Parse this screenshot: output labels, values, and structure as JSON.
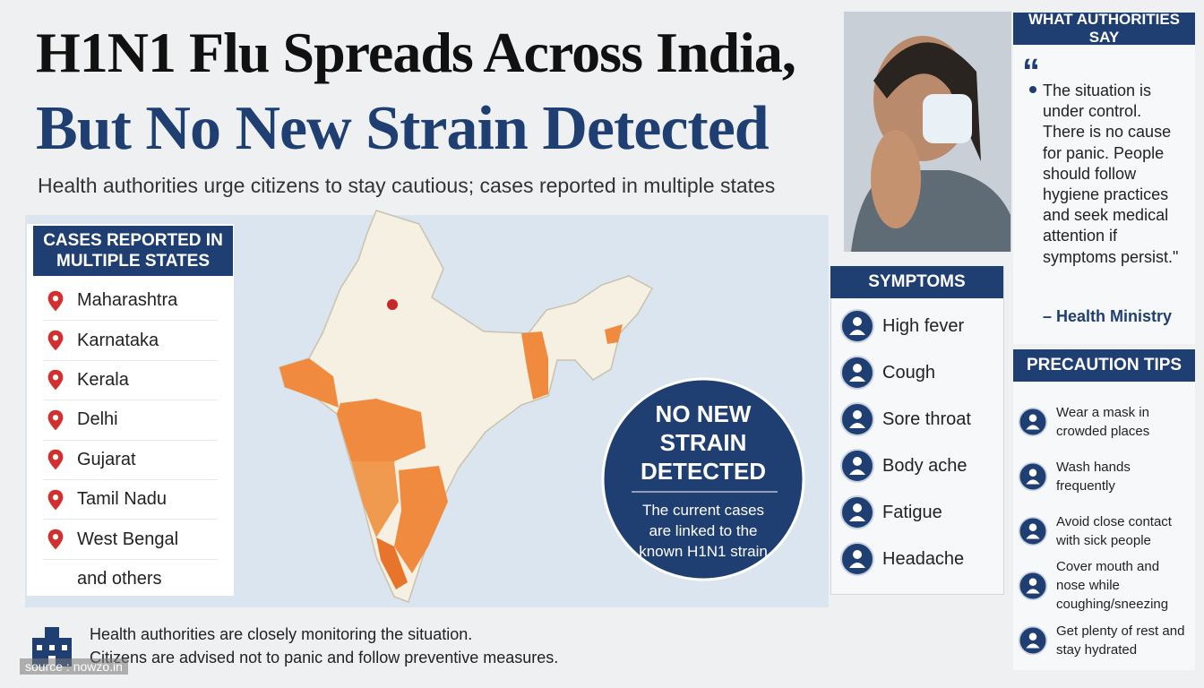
{
  "header": {
    "title_line1": "H1N1 Flu Spreads Across India,",
    "title_line2": "But No New Strain Detected",
    "subtitle": "Health authorities urge citizens to stay cautious; cases reported in multiple states"
  },
  "states_panel": {
    "title": "CASES REPORTED IN MULTIPLE STATES",
    "states": [
      "Maharashtra",
      "Karnataka",
      "Kerala",
      "Delhi",
      "Gujarat",
      "Tamil Nadu",
      "West Bengal"
    ],
    "more": "and others"
  },
  "callout": {
    "title": "NO NEW STRAIN DETECTED",
    "text": "The current cases are linked to the known H1N1 strain"
  },
  "symptoms": {
    "title": "SYMPTOMS",
    "items": [
      "High fever",
      "Cough",
      "Sore throat",
      "Body ache",
      "Fatigue",
      "Headache"
    ]
  },
  "authorities": {
    "title": "WHAT AUTHORITIES SAY",
    "quote_open": "“",
    "quote": "The situation is under control. There is no cause for panic. People should follow hygiene practices and seek medical attention if symptoms persist.\"",
    "attribution": "– Health Ministry"
  },
  "precautions": {
    "title": "PRECAUTION TIPS",
    "items": [
      "Wear a mask in crowded places",
      "Wash hands frequently",
      "Avoid close contact with sick people",
      "Cover mouth and nose while coughing/sneezing",
      "Get plenty of rest and stay hydrated"
    ]
  },
  "footer": {
    "line1": "Health authorities are closely monitoring the situation.",
    "line2": "Citizens are advised not to panic and follow preventive measures.",
    "source": "source : nowzo.in"
  }
}
